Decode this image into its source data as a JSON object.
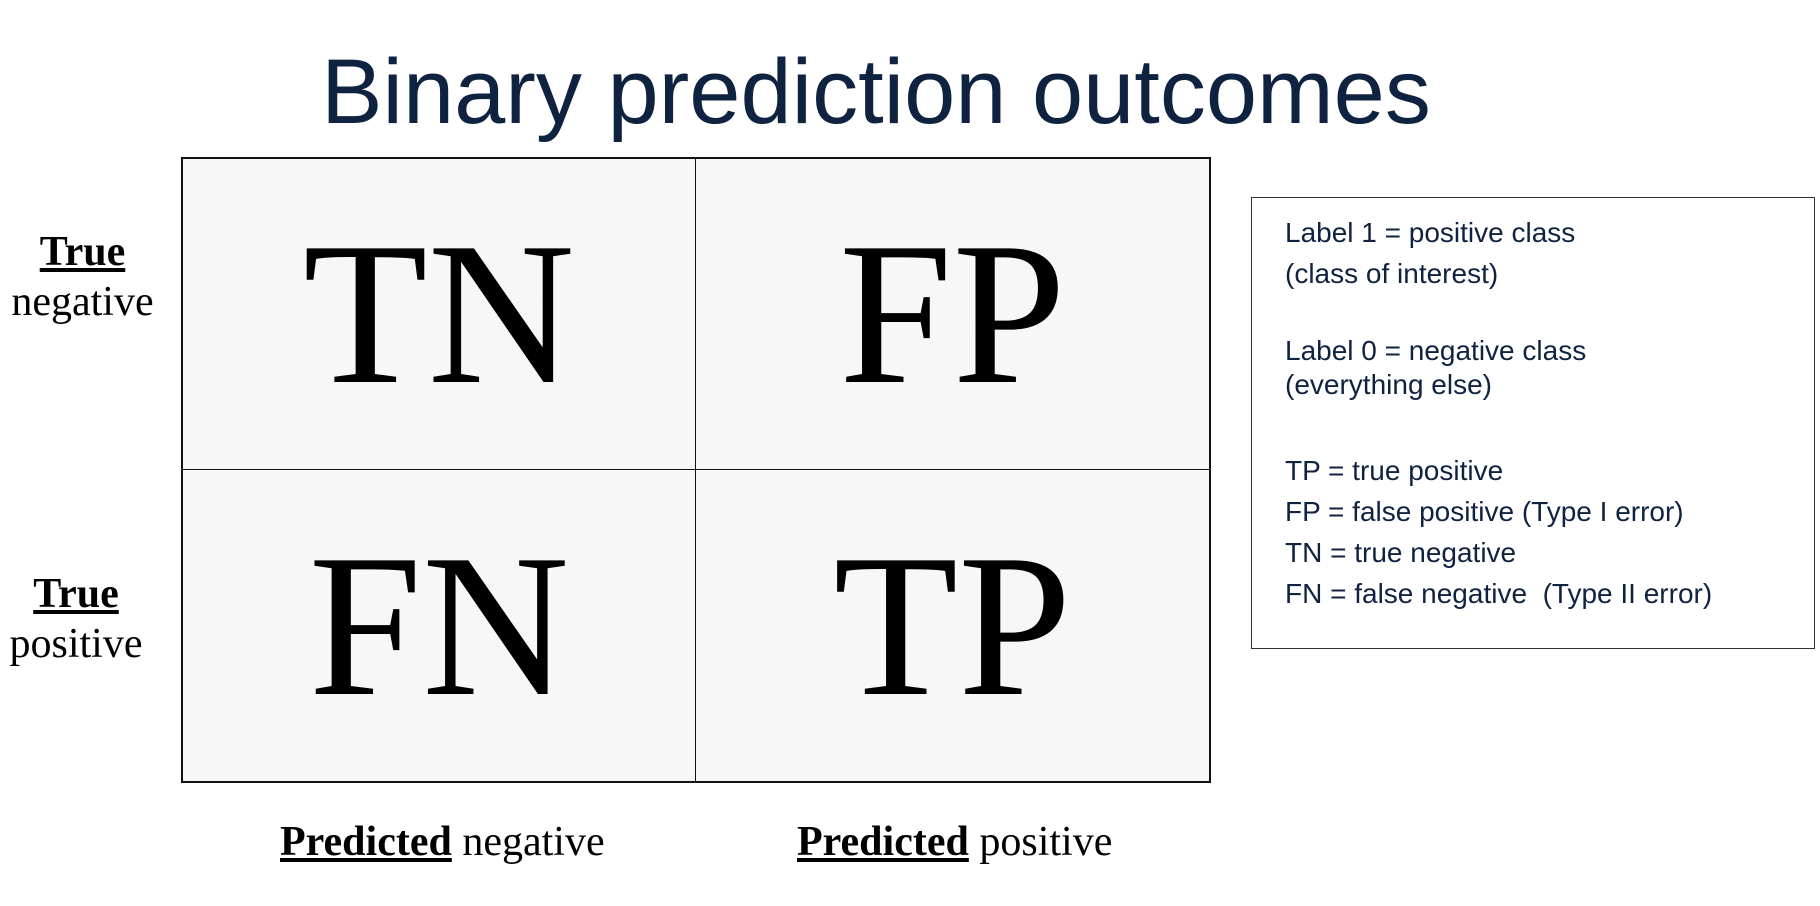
{
  "title": "Binary prediction outcomes",
  "matrix": {
    "cells": {
      "top_left": "TN",
      "top_right": "FP",
      "bottom_left": "FN",
      "bottom_right": "TP"
    },
    "rows": [
      {
        "bold": "True",
        "rest": "negative"
      },
      {
        "bold": "True",
        "rest": "positive"
      }
    ],
    "columns": [
      {
        "bold": "Predicted",
        "rest": " negative"
      },
      {
        "bold": "Predicted",
        "rest": " positive"
      }
    ]
  },
  "legend": {
    "group1": [
      "Label 1 = positive class",
      "(class of interest)"
    ],
    "group2": [
      "Label 0 = negative class",
      "(everything else)"
    ],
    "group3": [
      "TP = true positive",
      "FP = false positive (Type I error)",
      "TN = true negative",
      "FN = false negative  (Type II error)"
    ]
  },
  "colors": {
    "title": "#0f2240",
    "cell_background": "#f7f7f7",
    "border": "#111111"
  }
}
